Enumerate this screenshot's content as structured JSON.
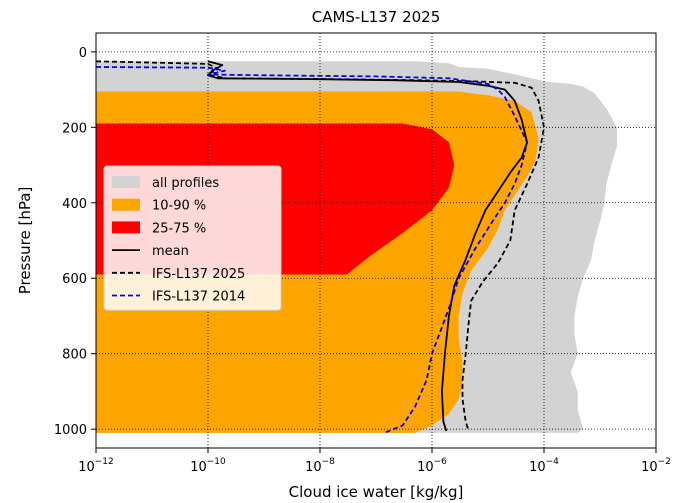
{
  "chart_data": {
    "type": "area",
    "title": "CAMS-L137 2025",
    "xlabel": "Cloud ice water [kg/kg]",
    "ylabel": "Pressure [hPa]",
    "x_scale": "log",
    "xlim": [
      1e-12,
      0.01
    ],
    "ylim": [
      1050,
      -50
    ],
    "y_inverted": true,
    "grid": "dotted",
    "legend_position": "center-left",
    "x_tick_labels": [
      {
        "value": 1e-12,
        "base": "10",
        "exp": "−12"
      },
      {
        "value": 1e-10,
        "base": "10",
        "exp": "−10"
      },
      {
        "value": 1e-08,
        "base": "10",
        "exp": "−8"
      },
      {
        "value": 1e-06,
        "base": "10",
        "exp": "−6"
      },
      {
        "value": 0.0001,
        "base": "10",
        "exp": "−4"
      },
      {
        "value": 0.01,
        "base": "10",
        "exp": "−2"
      }
    ],
    "y_ticks": [
      {
        "value": 0,
        "label": "0"
      },
      {
        "value": 200,
        "label": "200"
      },
      {
        "value": 400,
        "label": "400"
      },
      {
        "value": 600,
        "label": "600"
      },
      {
        "value": 800,
        "label": "800"
      },
      {
        "value": 1000,
        "label": "1000"
      }
    ],
    "colors": {
      "all_profiles": "#d3d3d3",
      "p10_90": "#ffa500",
      "p25_75": "#ff0000",
      "mean": "#000000",
      "ifs_2025": "#000000",
      "ifs_2014": "#0000ff"
    },
    "legend": [
      {
        "key": "all_profiles",
        "label": "all profiles",
        "kind": "patch"
      },
      {
        "key": "p10_90",
        "label": "10-90 %",
        "kind": "patch"
      },
      {
        "key": "p25_75",
        "label": "25-75 %",
        "kind": "patch"
      },
      {
        "key": "mean",
        "label": "mean",
        "kind": "solid"
      },
      {
        "key": "ifs_2025",
        "label": "IFS-L137 2025",
        "kind": "dashed"
      },
      {
        "key": "ifs_2014",
        "label": "IFS-L137 2014",
        "kind": "dashed"
      }
    ],
    "areas": [
      {
        "key": "all_profiles",
        "points": [
          [
            1e-12,
            25
          ],
          [
            1e-11,
            25
          ],
          [
            1e-10,
            25
          ],
          [
            1e-08,
            25
          ],
          [
            5e-07,
            25
          ],
          [
            2e-06,
            30
          ],
          [
            3e-06,
            40
          ],
          [
            1e-05,
            45
          ],
          [
            3e-05,
            60
          ],
          [
            0.00012,
            80
          ],
          [
            0.0003,
            85
          ],
          [
            0.0005,
            92
          ],
          [
            0.0008,
            110
          ],
          [
            0.0013,
            150
          ],
          [
            0.002,
            200
          ],
          [
            0.002,
            250
          ],
          [
            0.0016,
            300
          ],
          [
            0.0013,
            350
          ],
          [
            0.0012,
            400
          ],
          [
            0.001,
            450
          ],
          [
            0.0008,
            500
          ],
          [
            0.0007,
            550
          ],
          [
            0.0005,
            600
          ],
          [
            0.0004,
            650
          ],
          [
            0.00035,
            700
          ],
          [
            0.00035,
            750
          ],
          [
            0.0004,
            800
          ],
          [
            0.0003,
            850
          ],
          [
            0.0004,
            900
          ],
          [
            0.0004,
            950
          ],
          [
            0.0005,
            1000
          ],
          [
            0.0004,
            1010
          ],
          [
            1e-12,
            1010
          ]
        ]
      },
      {
        "key": "p10_90",
        "points": [
          [
            1e-12,
            105
          ],
          [
            3e-06,
            105
          ],
          [
            5e-06,
            110
          ],
          [
            1e-05,
            115
          ],
          [
            3e-05,
            130
          ],
          [
            6e-05,
            160
          ],
          [
            8e-05,
            230
          ],
          [
            7e-05,
            290
          ],
          [
            5e-05,
            330
          ],
          [
            3e-05,
            380
          ],
          [
            2e-05,
            420
          ],
          [
            1.5e-05,
            470
          ],
          [
            1e-05,
            520
          ],
          [
            5e-06,
            580
          ],
          [
            3.5e-06,
            640
          ],
          [
            3e-06,
            700
          ],
          [
            3e-06,
            760
          ],
          [
            3.5e-06,
            820
          ],
          [
            3.5e-06,
            880
          ],
          [
            3e-06,
            920
          ],
          [
            2e-06,
            960
          ],
          [
            1e-06,
            990
          ],
          [
            5e-07,
            1010
          ],
          [
            1e-12,
            1010
          ]
        ]
      },
      {
        "key": "p25_75",
        "points": [
          [
            1e-12,
            190
          ],
          [
            3e-07,
            190
          ],
          [
            1e-06,
            205
          ],
          [
            2e-06,
            240
          ],
          [
            2.5e-06,
            300
          ],
          [
            2e-06,
            360
          ],
          [
            1e-06,
            420
          ],
          [
            3e-07,
            480
          ],
          [
            8e-08,
            540
          ],
          [
            3e-08,
            590
          ],
          [
            1e-12,
            590
          ]
        ]
      }
    ],
    "series": [
      {
        "name": "mean",
        "style": "solid",
        "points": [
          [
            1e-10,
            25
          ],
          [
            1.8e-10,
            35
          ],
          [
            1.2e-10,
            50
          ],
          [
            1e-10,
            62
          ],
          [
            1.5e-10,
            70
          ],
          [
            5e-09,
            72
          ],
          [
            2e-07,
            75
          ],
          [
            3e-06,
            80
          ],
          [
            1e-05,
            90
          ],
          [
            2e-05,
            100
          ],
          [
            3e-05,
            130
          ],
          [
            4e-05,
            180
          ],
          [
            5e-05,
            240
          ],
          [
            4e-05,
            280
          ],
          [
            2.5e-05,
            320
          ],
          [
            1.5e-05,
            370
          ],
          [
            9e-06,
            420
          ],
          [
            6e-06,
            480
          ],
          [
            4e-06,
            550
          ],
          [
            2.5e-06,
            620
          ],
          [
            2e-06,
            700
          ],
          [
            1.7e-06,
            800
          ],
          [
            1.5e-06,
            900
          ],
          [
            1.6e-06,
            980
          ],
          [
            1.8e-06,
            1005
          ]
        ]
      },
      {
        "name": "IFS-L137 2025",
        "style": "dashed",
        "points": [
          [
            1e-12,
            25
          ],
          [
            1e-10,
            32
          ],
          [
            1.5e-10,
            45
          ],
          [
            1e-10,
            60
          ],
          [
            2e-10,
            70
          ],
          [
            1e-08,
            72
          ],
          [
            5e-07,
            75
          ],
          [
            5e-06,
            78
          ],
          [
            3e-05,
            82
          ],
          [
            6e-05,
            95
          ],
          [
            8e-05,
            130
          ],
          [
            0.0001,
            200
          ],
          [
            8e-05,
            280
          ],
          [
            5e-05,
            350
          ],
          [
            3e-05,
            420
          ],
          [
            2.5e-05,
            500
          ],
          [
            1.5e-05,
            560
          ],
          [
            8e-06,
            610
          ],
          [
            5e-06,
            660
          ],
          [
            4.5e-06,
            720
          ],
          [
            4e-06,
            800
          ],
          [
            3.5e-06,
            870
          ],
          [
            3.5e-06,
            920
          ],
          [
            4e-06,
            980
          ],
          [
            4.5e-06,
            1005
          ]
        ]
      },
      {
        "name": "IFS-L137 2014",
        "style": "dashed",
        "points": [
          [
            1e-12,
            40
          ],
          [
            1e-10,
            42
          ],
          [
            2e-10,
            50
          ],
          [
            1e-10,
            60
          ],
          [
            1e-09,
            62
          ],
          [
            1e-07,
            65
          ],
          [
            2e-06,
            70
          ],
          [
            1e-05,
            85
          ],
          [
            1.5e-05,
            100
          ],
          [
            2e-05,
            120
          ],
          [
            3e-05,
            170
          ],
          [
            5e-05,
            240
          ],
          [
            4e-05,
            300
          ],
          [
            3e-05,
            350
          ],
          [
            2e-05,
            400
          ],
          [
            1.2e-05,
            450
          ],
          [
            6e-06,
            520
          ],
          [
            3e-06,
            600
          ],
          [
            2e-06,
            680
          ],
          [
            1.5e-06,
            730
          ],
          [
            1e-06,
            800
          ],
          [
            8e-07,
            870
          ],
          [
            5e-07,
            940
          ],
          [
            3e-07,
            990
          ],
          [
            1.5e-07,
            1008
          ]
        ]
      }
    ]
  }
}
